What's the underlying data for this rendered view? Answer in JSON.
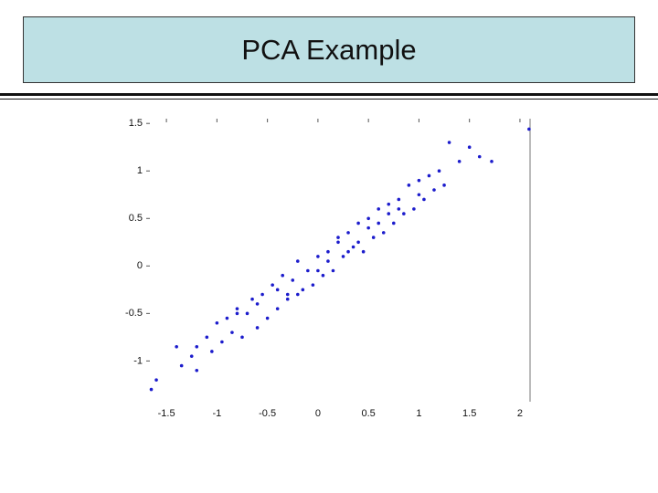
{
  "chart_data": {
    "type": "scatter",
    "title": "PCA Example",
    "color": "#1c1ccc",
    "xlim": [
      -1.7,
      2.1
    ],
    "ylim": [
      -1.4,
      1.55
    ],
    "xticks": [
      -1.5,
      -1,
      -0.5,
      0,
      0.5,
      1,
      1.5,
      2
    ],
    "yticks": [
      -1,
      -0.5,
      0,
      0.5,
      1,
      1.5
    ],
    "x": [
      -1.65,
      -1.6,
      -1.35,
      -1.4,
      -1.25,
      -1.2,
      -1.1,
      -1.05,
      -1.0,
      -0.95,
      -0.9,
      -0.85,
      -0.8,
      -0.75,
      -0.7,
      -0.65,
      -0.6,
      -0.55,
      -0.5,
      -0.45,
      -0.4,
      -0.35,
      -0.3,
      -0.25,
      -0.2,
      -0.15,
      -0.1,
      -0.05,
      0,
      0.05,
      0.1,
      0.15,
      0.2,
      0.25,
      0.3,
      0.35,
      0.4,
      0.45,
      0.5,
      0.55,
      0.6,
      0.65,
      0.7,
      0.75,
      0.8,
      0.85,
      0.9,
      0.95,
      1.0,
      1.05,
      1.1,
      1.15,
      1.2,
      1.3,
      1.4,
      1.5,
      1.6,
      1.72,
      2.09,
      -0.6,
      -0.4,
      -0.2,
      0,
      0.2,
      0.4,
      0.6,
      0.8,
      1.0,
      -0.8,
      -0.3,
      0.1,
      0.3,
      0.5,
      0.7,
      -1.2,
      1.25
    ],
    "values": [
      -1.3,
      -1.2,
      -1.05,
      -0.85,
      -0.95,
      -1.1,
      -0.75,
      -0.9,
      -0.6,
      -0.8,
      -0.55,
      -0.7,
      -0.45,
      -0.75,
      -0.5,
      -0.35,
      -0.65,
      -0.3,
      -0.55,
      -0.2,
      -0.45,
      -0.1,
      -0.3,
      -0.15,
      0.05,
      -0.25,
      -0.05,
      -0.2,
      0.1,
      -0.1,
      0.15,
      -0.05,
      0.25,
      0.1,
      0.35,
      0.2,
      0.45,
      0.15,
      0.5,
      0.3,
      0.6,
      0.35,
      0.65,
      0.45,
      0.7,
      0.55,
      0.85,
      0.6,
      0.9,
      0.7,
      0.95,
      0.8,
      1.0,
      1.3,
      1.1,
      1.25,
      1.15,
      1.1,
      1.44,
      -0.4,
      -0.25,
      -0.3,
      -0.05,
      0.3,
      0.25,
      0.45,
      0.6,
      0.75,
      -0.5,
      -0.35,
      0.05,
      0.15,
      0.4,
      0.55,
      -0.85,
      0.85
    ]
  }
}
